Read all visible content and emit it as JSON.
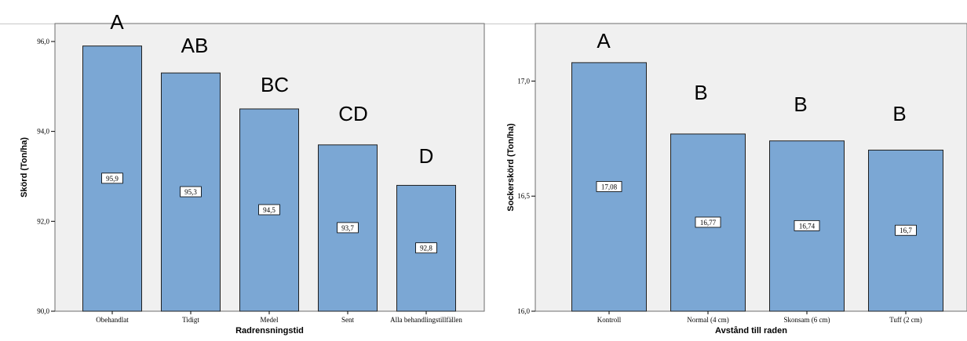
{
  "colors": {
    "bar_fill": "#7ba7d4",
    "bar_stroke": "#1f1f1f",
    "plot_bg": "#f0f0f0",
    "label_bg": "#ffffff"
  },
  "chart_data": [
    {
      "type": "bar",
      "categories": [
        "Obehandlat",
        "Tidigt",
        "Medel",
        "Sent",
        "Alla behandlingstillfällen"
      ],
      "values": [
        95.9,
        95.3,
        94.5,
        93.7,
        92.8
      ],
      "value_labels": [
        "95,9",
        "95,3",
        "94,5",
        "93,7",
        "92,8"
      ],
      "significance_letters": [
        "A",
        "AB",
        "BC",
        "CD",
        "D"
      ],
      "xlabel": "Radrensningstid",
      "ylabel": "Skörd (Ton/ha)",
      "ylim": [
        90,
        96.4
      ],
      "yticks": [
        90,
        92,
        94,
        96
      ],
      "ytick_labels": [
        "90,0",
        "92,0",
        "94,0",
        "96,0"
      ],
      "grid": false
    },
    {
      "type": "bar",
      "categories": [
        "Kontroll",
        "Normal (4 cm)",
        "Skonsam (6 cm)",
        "Tuff (2 cm)"
      ],
      "values": [
        17.08,
        16.77,
        16.74,
        16.7
      ],
      "value_labels": [
        "17,08",
        "16,77",
        "16,74",
        "16,7"
      ],
      "significance_letters": [
        "A",
        "B",
        "B",
        "B"
      ],
      "xlabel": "Avstånd till raden",
      "ylabel": "Sockerskörd (Ton/ha)",
      "ylim": [
        16,
        17.25
      ],
      "yticks": [
        16,
        16.5,
        17
      ],
      "ytick_labels": [
        "16,0",
        "16,5",
        "17,0"
      ],
      "grid": false
    }
  ]
}
